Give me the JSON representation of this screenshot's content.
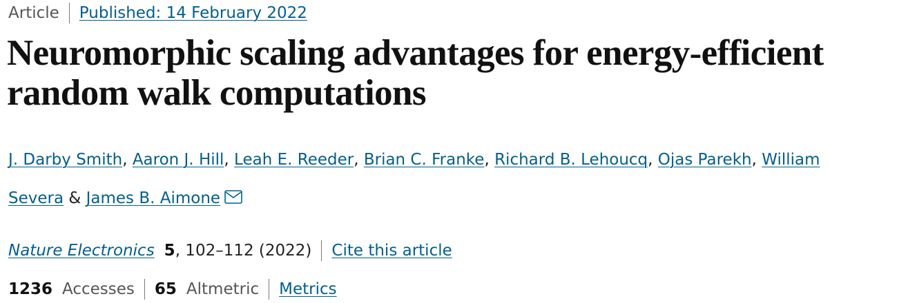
{
  "header": {
    "type": "Article",
    "published": "Published: 14 February 2022"
  },
  "title": "Neuromorphic scaling advantages for energy-efficient random walk computations",
  "authors": {
    "names": [
      "J. Darby Smith",
      "Aaron J. Hill",
      "Leah E. Reeder",
      "Brian C. Franke",
      "Richard B. Lehoucq",
      "Ojas Parekh",
      "William Severa",
      "James B. Aimone"
    ],
    "separator": ", ",
    "conjunction": "&"
  },
  "citation": {
    "journal": "Nature Electronics",
    "volume": 5,
    "pages": ", 102–112 (2022)",
    "cite": "Cite this article"
  },
  "metrics": {
    "accesses": 1236,
    "accesses_label": "Accesses",
    "altmetric": 65,
    "altmetric_label": "Altmetric",
    "link": "Metrics"
  }
}
